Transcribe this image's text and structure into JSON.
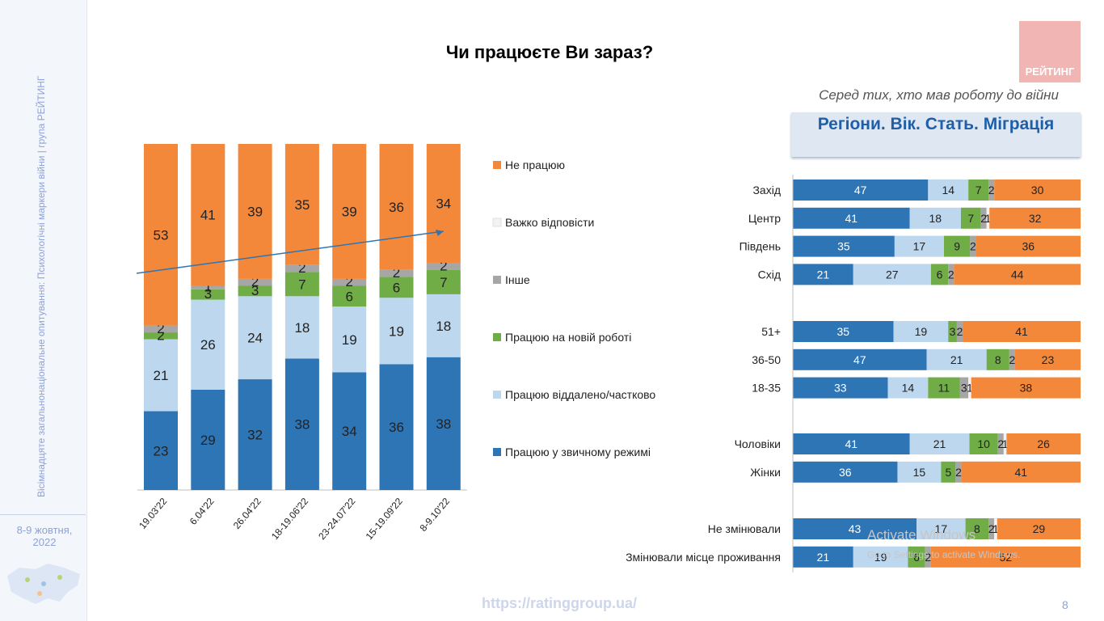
{
  "sidebar": {
    "vertical_text": "Вісімнадцяте загальнонаціональне опитування: Психологічні маркери війни | група РЕЙТИНГ",
    "date": "8-9 жовтня, 2022"
  },
  "header": {
    "title": "Чи працюєте Ви зараз?",
    "logo": "РЕЙТИНГ",
    "subtitle": "Серед тих, хто мав роботу до війни",
    "section": "Регіони. Вік. Стать. Міграція"
  },
  "footer": {
    "url": "https://ratinggroup.ua/",
    "page": "8",
    "watermark_line1": "Activate Windows",
    "watermark_line2": "Go to Settings to activate Windows."
  },
  "colors": {
    "regular": "#2e75b6",
    "remote": "#bdd7ee",
    "new_job": "#70ad47",
    "other": "#a6a6a6",
    "hard": "#f2f2f2",
    "not_working": "#f4883a",
    "trend_arrow": "#2e75b6"
  },
  "chart_data": [
    {
      "type": "bar",
      "stacked": true,
      "orientation": "vertical",
      "categories": [
        "19.03'22",
        "6.04'22",
        "26.04'22",
        "18-19.06'22",
        "23-24.07'22",
        "15-19.09'22",
        "8-9.10'22"
      ],
      "series": [
        {
          "name": "Працюю у звичному режимі",
          "key": "regular",
          "values": [
            23,
            29,
            32,
            38,
            34,
            36,
            38
          ]
        },
        {
          "name": "Працюю віддалено/частково",
          "key": "remote",
          "values": [
            21,
            26,
            24,
            18,
            19,
            19,
            18
          ]
        },
        {
          "name": "Працюю на новій роботі",
          "key": "new_job",
          "values": [
            2,
            3,
            3,
            7,
            6,
            6,
            7
          ]
        },
        {
          "name": "Інше",
          "key": "other",
          "values": [
            2,
            1,
            2,
            2,
            2,
            2,
            2
          ]
        },
        {
          "name": "Важко відповісти",
          "key": "hard",
          "values": [
            0,
            0,
            0,
            0,
            0,
            0,
            0
          ]
        },
        {
          "name": "Не працюю",
          "key": "not_working",
          "values": [
            53,
            41,
            39,
            35,
            39,
            36,
            34
          ]
        }
      ],
      "legend": [
        "Не працюю",
        "Важко відповісти",
        "Інше",
        "Працюю на новій роботі",
        "Працюю віддалено/частково",
        "Працюю у звичному режимі"
      ],
      "legend_position": "right",
      "annotations": [
        "trend arrow rising across 'Не працюю' segments"
      ]
    },
    {
      "type": "bar",
      "stacked": true,
      "orientation": "horizontal",
      "groups": [
        {
          "rows": [
            {
              "label": "Захід",
              "values": [
                47,
                14,
                7,
                2,
                0,
                30
              ],
              "labels": [
                "47",
                "14",
                "7",
                "2",
                "",
                "30"
              ]
            },
            {
              "label": "Центр",
              "values": [
                41,
                18,
                7,
                2,
                1,
                32
              ],
              "labels": [
                "41",
                "18",
                "7",
                "2",
                "1",
                "32"
              ]
            },
            {
              "label": "Південь",
              "values": [
                35,
                17,
                9,
                2,
                0,
                36
              ],
              "labels": [
                "35",
                "17",
                "9",
                "2",
                "",
                "36"
              ]
            },
            {
              "label": "Схід",
              "values": [
                21,
                27,
                6,
                2,
                0,
                44
              ],
              "labels": [
                "21",
                "27",
                "6",
                "2",
                "",
                "44"
              ]
            }
          ]
        },
        {
          "rows": [
            {
              "label": "51+",
              "values": [
                35,
                19,
                3,
                2,
                0,
                41
              ],
              "labels": [
                "35",
                "19",
                "3",
                "2",
                "",
                "41"
              ]
            },
            {
              "label": "36-50",
              "values": [
                47,
                21,
                8,
                2,
                0,
                23
              ],
              "labels": [
                "47",
                "21",
                "8",
                "2",
                "",
                "23"
              ]
            },
            {
              "label": "18-35",
              "values": [
                33,
                14,
                11,
                3,
                1,
                38
              ],
              "labels": [
                "33",
                "14",
                "11",
                "3",
                "1",
                "38"
              ]
            }
          ]
        },
        {
          "rows": [
            {
              "label": "Чоловіки",
              "values": [
                41,
                21,
                10,
                2,
                1,
                26
              ],
              "labels": [
                "41",
                "21",
                "10",
                "2",
                "1",
                "26"
              ]
            },
            {
              "label": "Жінки",
              "values": [
                36,
                15,
                5,
                2,
                0,
                41
              ],
              "labels": [
                "36",
                "15",
                "5",
                "2",
                "",
                "41"
              ]
            }
          ]
        },
        {
          "rows": [
            {
              "label": "Не змінювали",
              "values": [
                43,
                17,
                8,
                2,
                1,
                29
              ],
              "labels": [
                "43",
                "17",
                "8",
                "2",
                "1",
                "29"
              ]
            },
            {
              "label": "Змінювали місце проживання",
              "values": [
                21,
                19,
                6,
                2,
                0,
                52
              ],
              "labels": [
                "21",
                "19",
                "6",
                "2",
                "",
                "52"
              ]
            }
          ]
        }
      ],
      "series_keys": [
        "regular",
        "remote",
        "new_job",
        "other",
        "hard",
        "not_working"
      ]
    }
  ]
}
